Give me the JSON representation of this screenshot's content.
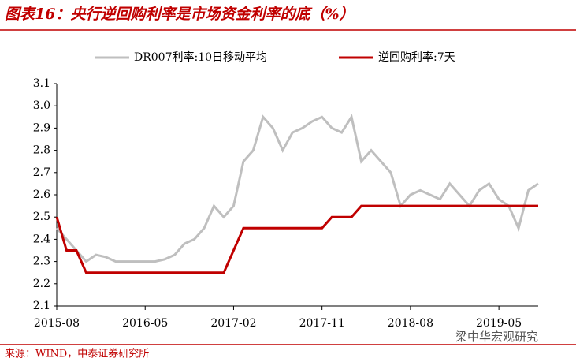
{
  "chart_data": {
    "type": "line",
    "title": "图表16：央行逆回购利率是市场资金利率的底（%）",
    "x": [
      "2015-08",
      "2015-09",
      "2015-10",
      "2015-11",
      "2015-12",
      "2016-01",
      "2016-02",
      "2016-03",
      "2016-04",
      "2016-05",
      "2016-06",
      "2016-07",
      "2016-08",
      "2016-09",
      "2016-10",
      "2016-11",
      "2016-12",
      "2017-01",
      "2017-02",
      "2017-03",
      "2017-04",
      "2017-05",
      "2017-06",
      "2017-07",
      "2017-08",
      "2017-09",
      "2017-10",
      "2017-11",
      "2017-12",
      "2018-01",
      "2018-02",
      "2018-03",
      "2018-04",
      "2018-05",
      "2018-06",
      "2018-07",
      "2018-08",
      "2018-09",
      "2018-10",
      "2018-11",
      "2018-12",
      "2019-01",
      "2019-02",
      "2019-03",
      "2019-04",
      "2019-05",
      "2019-06",
      "2019-07",
      "2019-08",
      "2019-09"
    ],
    "xticks": [
      "2015-08",
      "2016-05",
      "2017-02",
      "2017-11",
      "2018-08",
      "2019-05"
    ],
    "series": [
      {
        "name": "DR007利率:10日移动平均",
        "color": "#bfbfbf",
        "values": [
          2.45,
          2.4,
          2.35,
          2.3,
          2.33,
          2.32,
          2.3,
          2.3,
          2.3,
          2.3,
          2.3,
          2.31,
          2.33,
          2.38,
          2.4,
          2.45,
          2.55,
          2.5,
          2.55,
          2.75,
          2.8,
          2.95,
          2.9,
          2.8,
          2.88,
          2.9,
          2.93,
          2.95,
          2.9,
          2.88,
          2.95,
          2.75,
          2.8,
          2.75,
          2.7,
          2.55,
          2.6,
          2.62,
          2.6,
          2.58,
          2.65,
          2.6,
          2.55,
          2.62,
          2.65,
          2.58,
          2.55,
          2.45,
          2.62,
          2.65
        ]
      },
      {
        "name": "逆回购利率:7天",
        "color": "#c00000",
        "values": [
          2.5,
          2.35,
          2.35,
          2.25,
          2.25,
          2.25,
          2.25,
          2.25,
          2.25,
          2.25,
          2.25,
          2.25,
          2.25,
          2.25,
          2.25,
          2.25,
          2.25,
          2.25,
          2.35,
          2.45,
          2.45,
          2.45,
          2.45,
          2.45,
          2.45,
          2.45,
          2.45,
          2.45,
          2.5,
          2.5,
          2.5,
          2.55,
          2.55,
          2.55,
          2.55,
          2.55,
          2.55,
          2.55,
          2.55,
          2.55,
          2.55,
          2.55,
          2.55,
          2.55,
          2.55,
          2.55,
          2.55,
          2.55,
          2.55,
          2.55
        ]
      }
    ],
    "ylim": [
      2.1,
      3.1
    ],
    "yticks": [
      2.1,
      2.2,
      2.3,
      2.4,
      2.5,
      2.6,
      2.7,
      2.8,
      2.9,
      {
        "value": 3,
        "label": "3.0"
      },
      3.1
    ],
    "legend": "top",
    "source": "来源：WIND，中泰证券研究所",
    "watermark": "梁中华宏观研究"
  }
}
